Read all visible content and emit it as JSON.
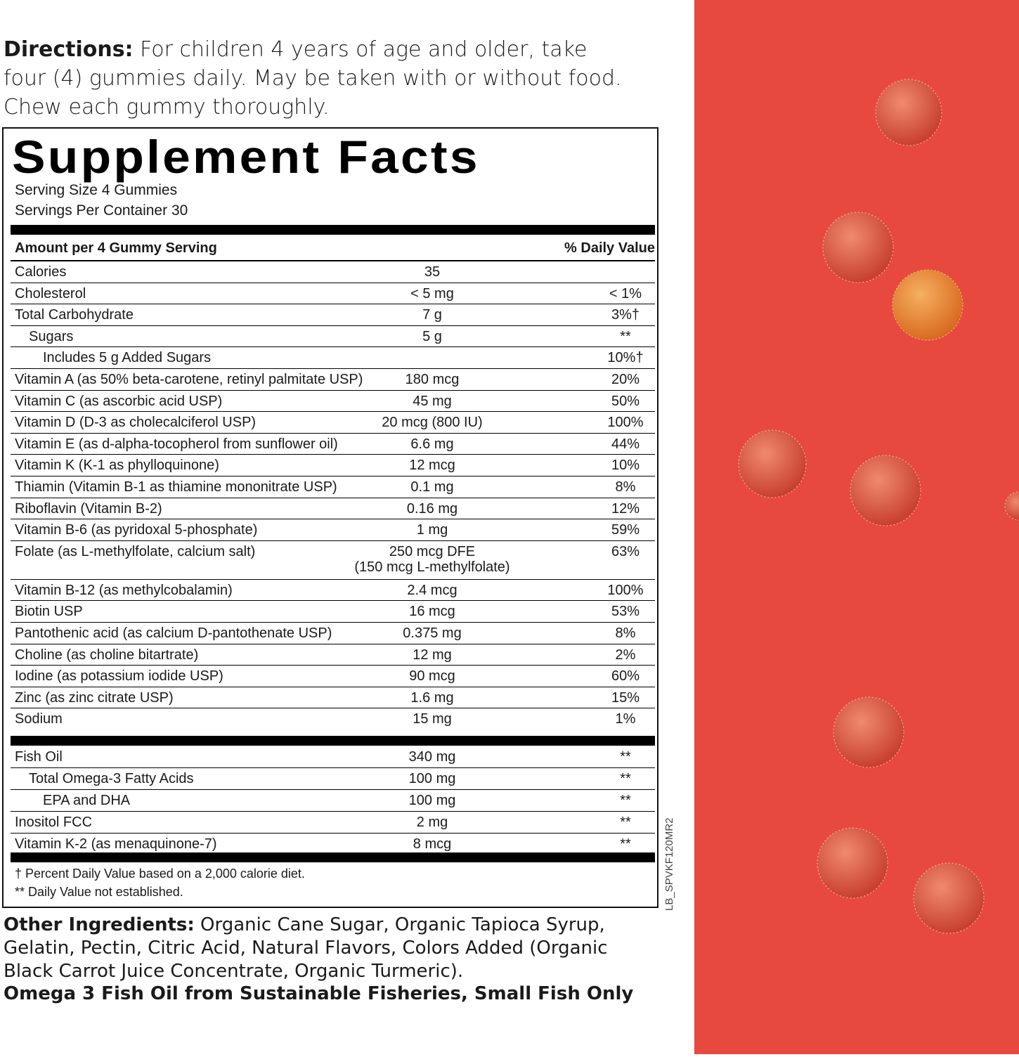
{
  "directions": {
    "label": "Directions:",
    "text": "For children 4 years of age and older, take four (4) gummies daily. May be taken with or without food. Chew each gummy thoroughly."
  },
  "facts": {
    "title": "Supplement Facts",
    "serving_size": "Serving Size 4 Gummies",
    "servings_per_container": "Servings Per Container 30",
    "header": {
      "amount": "Amount per 4 Gummy Serving",
      "dv": "% Daily Value"
    },
    "rows": [
      {
        "name": "Calories",
        "amount": "35"
      },
      {
        "name": "Cholesterol",
        "amount": "< 5 mg",
        "dv": "< 1%"
      },
      {
        "name": "Total Carbohydrate",
        "amount": "7 g",
        "dv": "3%†"
      },
      {
        "name": "Sugars",
        "amount": "5 g",
        "dv": "**",
        "level": 1
      },
      {
        "name": "Includes 5 g Added Sugars",
        "dv": "10%†",
        "level": 2
      },
      {
        "name": "Vitamin A (as 50% beta-carotene, retinyl palmitate USP)",
        "amount": "180 mcg",
        "dv": "20%"
      },
      {
        "name": "Vitamin C (as ascorbic acid USP)",
        "amount": "45 mg",
        "dv": "50%"
      },
      {
        "name": "Vitamin D (D-3 as cholecalciferol USP)",
        "amount": "20 mcg (800 IU)",
        "dv": "100%"
      },
      {
        "name": "Vitamin E (as d-alpha-tocopherol from sunflower oil)",
        "amount": "6.6 mg",
        "dv": "44%"
      },
      {
        "name": "Vitamin K (K-1 as phylloquinone)",
        "amount": "12 mcg",
        "dv": "10%"
      },
      {
        "name": "Thiamin (Vitamin B-1 as thiamine mononitrate USP)",
        "amount": "0.1 mg",
        "dv": "8%"
      },
      {
        "name": "Riboflavin (Vitamin B-2)",
        "amount": "0.16 mg",
        "dv": "12%"
      },
      {
        "name": "Vitamin B-6 (as pyridoxal 5-phosphate)",
        "amount": "1 mg",
        "dv": "59%"
      },
      {
        "name": "Folate (as L-methylfolate, calcium salt)",
        "amount": "250 mcg DFE",
        "amount_note": "(150 mcg L-methylfolate)",
        "dv": "63%"
      },
      {
        "name": "Vitamin B-12 (as methylcobalamin)",
        "amount": "2.4 mcg",
        "dv": "100%"
      },
      {
        "name": "Biotin USP",
        "amount": "16 mcg",
        "dv": "53%"
      },
      {
        "name": "Pantothenic acid (as calcium D-pantothenate USP)",
        "amount": "0.375 mg",
        "dv": "8%"
      },
      {
        "name": "Choline (as choline bitartrate)",
        "amount": "12 mg",
        "dv": "2%"
      },
      {
        "name": "Iodine (as potassium iodide USP)",
        "amount": "90 mcg",
        "dv": "60%"
      },
      {
        "name": "Zinc (as zinc citrate USP)",
        "amount": "1.6 mg",
        "dv": "15%"
      },
      {
        "name": "Sodium",
        "amount": "15 mg",
        "dv": "1%"
      }
    ],
    "rows2": [
      {
        "name": "Fish Oil",
        "amount": "340 mg",
        "dv": "**"
      },
      {
        "name": "Total Omega-3 Fatty Acids",
        "amount": "100 mg",
        "dv": "**",
        "level": 1
      },
      {
        "name": "EPA and DHA",
        "amount": "100 mg",
        "dv": "**",
        "level": 2
      },
      {
        "name": "Inositol FCC",
        "amount": "2 mg",
        "dv": "**"
      },
      {
        "name": "Vitamin K-2 (as menaquinone-7)",
        "amount": "8 mcg",
        "dv": "**"
      }
    ],
    "footnotes": [
      "† Percent Daily Value based on a 2,000 calorie diet.",
      "** Daily Value not established."
    ]
  },
  "code": "LB_SPVKF120MR2",
  "other_ingredients": {
    "label": "Other Ingredients:",
    "text": "Organic Cane Sugar, Organic Tapioca Syrup, Gelatin, Pectin, Citric Acid, Natural Flavors, Colors Added (Organic Black Carrot Juice Concentrate, Organic Turmeric)."
  },
  "sourcing": "Omega 3 Fish Oil from Sustainable Fisheries, Small Fish Only"
}
